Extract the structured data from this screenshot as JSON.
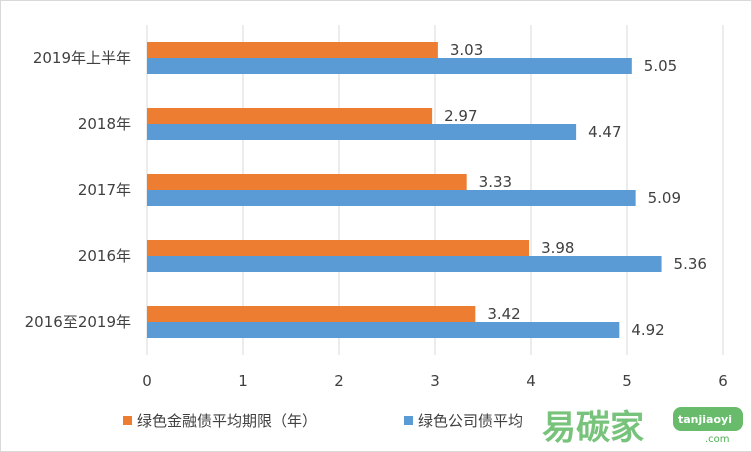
{
  "chart_data": {
    "type": "bar",
    "orientation": "horizontal",
    "categories": [
      "2019年上半年",
      "2018年",
      "2017年",
      "2016年",
      "2016至2019年"
    ],
    "series": [
      {
        "name": "绿色金融债平均期限（年）",
        "color": "#ED7D31",
        "values": [
          3.03,
          2.97,
          3.33,
          3.98,
          3.42
        ]
      },
      {
        "name": "绿色公司债平均期限（年）",
        "color": "#5B9BD5",
        "values": [
          5.05,
          4.47,
          5.09,
          5.36,
          4.92
        ]
      }
    ],
    "xlim": [
      0,
      6
    ],
    "xticks": [
      0,
      1,
      2,
      3,
      4,
      5,
      6
    ],
    "grid": "vertical",
    "legend": "bottom",
    "title": "",
    "xlabel": "",
    "ylabel": ""
  },
  "legend": {
    "item1": "绿色金融债平均期限（年）",
    "item2_visible": "绿色公司债平均"
  },
  "watermark": {
    "cn": "易碳家",
    "en": "tanjiaoyi",
    "com": ".com"
  }
}
